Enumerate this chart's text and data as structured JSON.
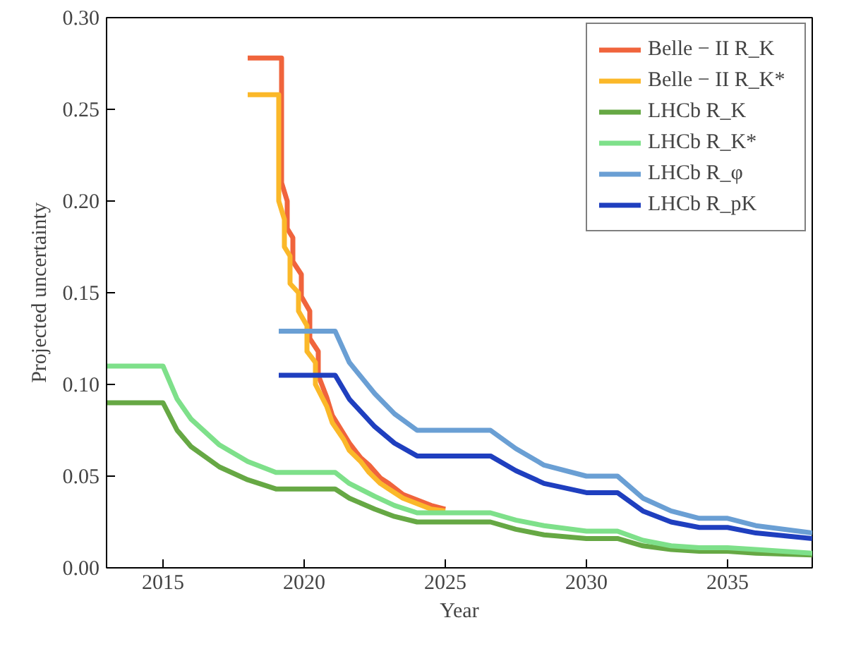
{
  "chart_data": {
    "type": "line",
    "xlabel": "Year",
    "ylabel": "Projected uncertainty",
    "xlim": [
      2013,
      2038
    ],
    "ylim": [
      0,
      0.3
    ],
    "xticks": [
      2015,
      2020,
      2025,
      2030,
      2035
    ],
    "yticks": [
      {
        "value": 0,
        "label": "0.00"
      },
      {
        "value": 0.05,
        "label": "0.05"
      },
      {
        "value": 0.1,
        "label": "0.10"
      },
      {
        "value": 0.15,
        "label": "0.15"
      },
      {
        "value": 0.2,
        "label": "0.20"
      },
      {
        "value": 0.25,
        "label": "0.25"
      },
      {
        "value": 0.3,
        "label": "0.30"
      }
    ],
    "grid": false,
    "legend": "top right",
    "line_style": "solid",
    "marker": "none",
    "series": [
      {
        "name": "Belle − II R_K",
        "color": "#f0643c",
        "x": [
          2018,
          2019.2,
          2019.2,
          2019.4,
          2019.4,
          2019.6,
          2019.6,
          2019.9,
          2019.9,
          2020.2,
          2020.2,
          2020.5,
          2020.5,
          2020.8,
          2021,
          2021.4,
          2021.6,
          2022,
          2022.3,
          2022.7,
          2023,
          2023.5,
          2024,
          2024.5,
          2025
        ],
        "values": [
          0.278,
          0.278,
          0.21,
          0.2,
          0.185,
          0.18,
          0.167,
          0.16,
          0.148,
          0.14,
          0.125,
          0.118,
          0.105,
          0.093,
          0.083,
          0.073,
          0.068,
          0.06,
          0.056,
          0.049,
          0.046,
          0.04,
          0.037,
          0.034,
          0.032
        ]
      },
      {
        "name": "Belle − II R_K*",
        "color": "#fbb829",
        "x": [
          2018,
          2019.1,
          2019.1,
          2019.3,
          2019.3,
          2019.5,
          2019.5,
          2019.8,
          2019.8,
          2020.1,
          2020.1,
          2020.4,
          2020.4,
          2020.8,
          2021,
          2021.4,
          2021.6,
          2022,
          2022.3,
          2022.7,
          2023,
          2023.5,
          2024,
          2024.5,
          2025
        ],
        "values": [
          0.258,
          0.258,
          0.2,
          0.19,
          0.175,
          0.17,
          0.155,
          0.15,
          0.14,
          0.132,
          0.118,
          0.112,
          0.1,
          0.088,
          0.079,
          0.07,
          0.064,
          0.058,
          0.052,
          0.046,
          0.043,
          0.038,
          0.035,
          0.032,
          0.031
        ]
      },
      {
        "name": "LHCb R_K",
        "color": "#66a844",
        "x": [
          2013,
          2015,
          2015.5,
          2016,
          2017,
          2018,
          2019,
          2021.1,
          2021.6,
          2022.5,
          2023.2,
          2024,
          2026.6,
          2027.5,
          2028.5,
          2030,
          2031.1,
          2032,
          2033,
          2034,
          2035,
          2036,
          2038
        ],
        "values": [
          0.09,
          0.09,
          0.075,
          0.066,
          0.055,
          0.048,
          0.043,
          0.043,
          0.038,
          0.032,
          0.028,
          0.025,
          0.025,
          0.021,
          0.018,
          0.016,
          0.016,
          0.012,
          0.01,
          0.009,
          0.009,
          0.008,
          0.007
        ]
      },
      {
        "name": "LHCb R_K*",
        "color": "#7ee08a",
        "x": [
          2013,
          2015,
          2015.5,
          2016,
          2017,
          2018,
          2019,
          2021.1,
          2021.6,
          2022.5,
          2023.2,
          2024,
          2026.6,
          2027.5,
          2028.5,
          2030,
          2031.1,
          2032,
          2033,
          2034,
          2035,
          2036,
          2038
        ],
        "values": [
          0.11,
          0.11,
          0.092,
          0.081,
          0.067,
          0.058,
          0.052,
          0.052,
          0.046,
          0.039,
          0.034,
          0.03,
          0.03,
          0.026,
          0.023,
          0.02,
          0.02,
          0.015,
          0.012,
          0.011,
          0.011,
          0.01,
          0.008
        ]
      },
      {
        "name": "LHCb R_φ",
        "color": "#6a9fd4",
        "x": [
          2019.1,
          2021.1,
          2021.6,
          2022.5,
          2023.2,
          2024,
          2026.6,
          2027.5,
          2028.5,
          2030,
          2031.1,
          2032,
          2033,
          2034,
          2035,
          2036,
          2038
        ],
        "values": [
          0.129,
          0.129,
          0.112,
          0.095,
          0.084,
          0.075,
          0.075,
          0.065,
          0.056,
          0.05,
          0.05,
          0.038,
          0.031,
          0.027,
          0.027,
          0.023,
          0.019
        ]
      },
      {
        "name": "LHCb R_pK",
        "color": "#1f3fbf",
        "x": [
          2019.1,
          2021.1,
          2021.6,
          2022.5,
          2023.2,
          2024,
          2026.6,
          2027.5,
          2028.5,
          2030,
          2031.1,
          2032,
          2033,
          2034,
          2035,
          2036,
          2038
        ],
        "values": [
          0.105,
          0.105,
          0.092,
          0.077,
          0.068,
          0.061,
          0.061,
          0.053,
          0.046,
          0.041,
          0.041,
          0.031,
          0.025,
          0.022,
          0.022,
          0.019,
          0.016
        ]
      }
    ]
  }
}
